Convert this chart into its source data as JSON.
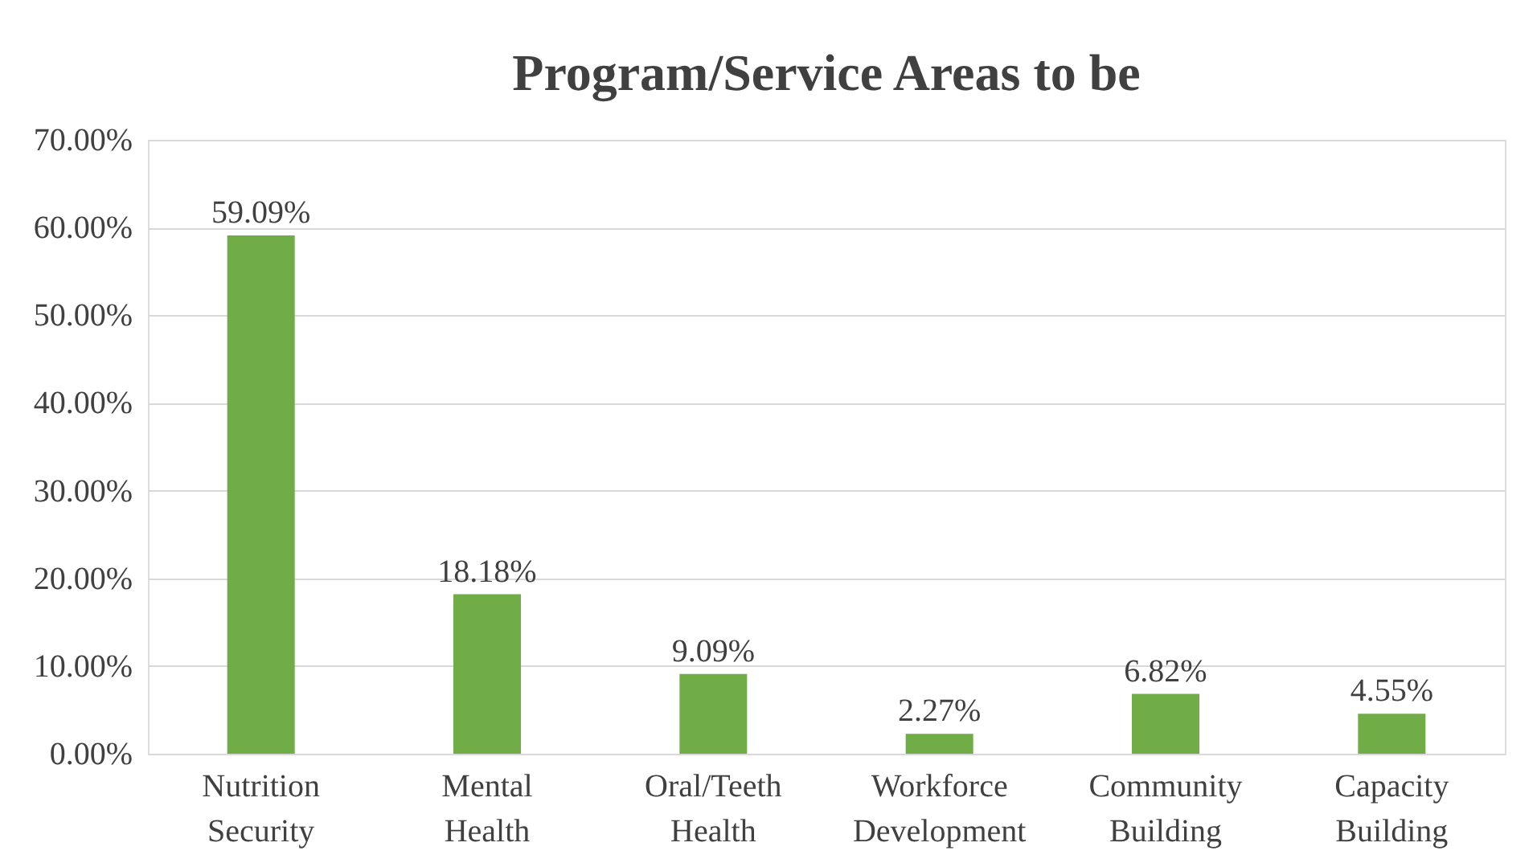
{
  "chart_data": {
    "type": "bar",
    "title": "Program/Service Areas to be",
    "categories": [
      "Nutrition Security",
      "Mental Health",
      "Oral/Teeth Health",
      "Workforce Development",
      "Community Building",
      "Capacity Building"
    ],
    "values": [
      59.09,
      18.18,
      9.09,
      2.27,
      6.82,
      4.55
    ],
    "value_labels": [
      "59.09%",
      "18.18%",
      "9.09%",
      "2.27%",
      "6.82%",
      "4.55%"
    ],
    "color": "#70ad47",
    "ylim": [
      0,
      70
    ],
    "yticks": [
      {
        "value": 0,
        "label": "0.00%"
      },
      {
        "value": 10,
        "label": "10.00%"
      },
      {
        "value": 20,
        "label": "20.00%"
      },
      {
        "value": 30,
        "label": "30.00%"
      },
      {
        "value": 40,
        "label": "40.00%"
      },
      {
        "value": 50,
        "label": "50.00%"
      },
      {
        "value": 60,
        "label": "60.00%"
      },
      {
        "value": 70,
        "label": "70.00%"
      }
    ],
    "grid": "y"
  }
}
